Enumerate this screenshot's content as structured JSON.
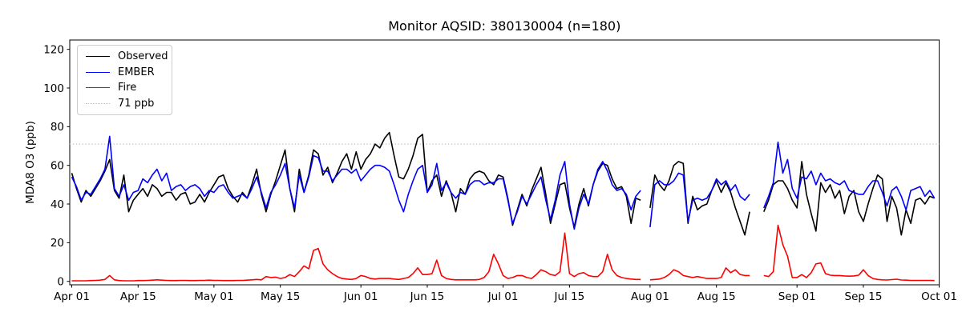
{
  "figure": {
    "title": "Monitor AQSID: 380130004 (n=180)",
    "background_color": "#ffffff"
  },
  "chart_data": {
    "type": "line",
    "title": "Monitor AQSID: 380130004 (n=180)",
    "xlabel": "",
    "ylabel": "MDA8 O3 (ppb)",
    "grid": false,
    "legend_position": "upper left",
    "ylim": [
      -2,
      125
    ],
    "yticks": [
      0,
      20,
      40,
      60,
      80,
      100,
      120
    ],
    "x_unit": "days since Apr 01",
    "x_range_days": [
      0,
      183
    ],
    "n_points": 183,
    "n_valid_points": 180,
    "xticks": [
      {
        "day": 0,
        "label": "Apr 01"
      },
      {
        "day": 14,
        "label": "Apr 15"
      },
      {
        "day": 30,
        "label": "May 01"
      },
      {
        "day": 44,
        "label": "May 15"
      },
      {
        "day": 61,
        "label": "Jun 01"
      },
      {
        "day": 75,
        "label": "Jun 15"
      },
      {
        "day": 91,
        "label": "Jul 01"
      },
      {
        "day": 105,
        "label": "Jul 15"
      },
      {
        "day": 122,
        "label": "Aug 01"
      },
      {
        "day": 136,
        "label": "Aug 15"
      },
      {
        "day": 153,
        "label": "Sep 01"
      },
      {
        "day": 167,
        "label": "Sep 15"
      },
      {
        "day": 183,
        "label": "Oct 01"
      }
    ],
    "reference_line": {
      "value": 71,
      "label": "71 ppb",
      "style": "dotted",
      "color": "#c0c0c0"
    },
    "series": [
      {
        "name": "Observed",
        "color": "#000000",
        "values": [
          56,
          48,
          41,
          47,
          44,
          48,
          52,
          57,
          63,
          47,
          43,
          55,
          36,
          42,
          45,
          48,
          44,
          50,
          48,
          44,
          46,
          46,
          42,
          45,
          46,
          40,
          41,
          45,
          41,
          46,
          50,
          54,
          55,
          48,
          44,
          41,
          46,
          43,
          50,
          58,
          45,
          36,
          45,
          52,
          60,
          68,
          48,
          36,
          58,
          46,
          55,
          68,
          66,
          55,
          59,
          51,
          56,
          62,
          66,
          58,
          67,
          58,
          63,
          66,
          71,
          69,
          74,
          77,
          65,
          54,
          53,
          58,
          65,
          74,
          76,
          46,
          52,
          55,
          44,
          52,
          46,
          36,
          48,
          45,
          53,
          56,
          57,
          56,
          52,
          50,
          55,
          54,
          43,
          29,
          37,
          45,
          39,
          47,
          53,
          59,
          45,
          30,
          40,
          50,
          51,
          38,
          28,
          40,
          48,
          39,
          50,
          57,
          61,
          60,
          53,
          48,
          49,
          44,
          30,
          43,
          42,
          null,
          38,
          55,
          50,
          47,
          52,
          60,
          62,
          61,
          30,
          44,
          37,
          39,
          40,
          47,
          52,
          46,
          51,
          46,
          38,
          31,
          24,
          36,
          null,
          null,
          36,
          42,
          50,
          52,
          52,
          48,
          42,
          38,
          62,
          45,
          35,
          26,
          51,
          46,
          50,
          43,
          47,
          35,
          44,
          47,
          36,
          31,
          40,
          48,
          55,
          53,
          31,
          44,
          38,
          24,
          37,
          30,
          42,
          43,
          40,
          44,
          43
        ]
      },
      {
        "name": "EMBER",
        "color": "#0000ff",
        "values": [
          54,
          49,
          42,
          46,
          45,
          49,
          53,
          58,
          75,
          48,
          44,
          50,
          42,
          46,
          47,
          53,
          51,
          55,
          58,
          52,
          56,
          47,
          49,
          50,
          47,
          49,
          50,
          48,
          44,
          47,
          46,
          49,
          50,
          46,
          43,
          44,
          45,
          43,
          48,
          54,
          46,
          38,
          46,
          50,
          55,
          61,
          48,
          38,
          55,
          46,
          54,
          65,
          64,
          57,
          57,
          52,
          55,
          58,
          58,
          56,
          58,
          52,
          55,
          58,
          60,
          60,
          59,
          57,
          50,
          42,
          36,
          45,
          52,
          58,
          60,
          46,
          50,
          61,
          47,
          51,
          46,
          43,
          46,
          45,
          50,
          52,
          52,
          50,
          51,
          51,
          53,
          53,
          42,
          30,
          36,
          44,
          40,
          45,
          50,
          54,
          42,
          32,
          42,
          55,
          62,
          40,
          27,
          38,
          45,
          40,
          50,
          58,
          62,
          57,
          50,
          47,
          48,
          45,
          37,
          44,
          47,
          null,
          28,
          50,
          52,
          50,
          50,
          52,
          56,
          55,
          31,
          42,
          43,
          42,
          43,
          47,
          53,
          50,
          52,
          47,
          50,
          44,
          42,
          45,
          null,
          null,
          38,
          44,
          51,
          72,
          56,
          63,
          48,
          43,
          54,
          53,
          57,
          50,
          56,
          52,
          53,
          51,
          50,
          52,
          47,
          46,
          45,
          45,
          49,
          52,
          52,
          46,
          39,
          47,
          49,
          44,
          37,
          47,
          48,
          49,
          44,
          47,
          43
        ]
      },
      {
        "name": "Fire",
        "color": "#ff0000",
        "values": [
          0.3,
          0.3,
          0.3,
          0.3,
          0.4,
          0.5,
          0.6,
          1,
          3,
          0.8,
          0.4,
          0.3,
          0.3,
          0.3,
          0.4,
          0.4,
          0.5,
          0.6,
          0.8,
          0.6,
          0.5,
          0.4,
          0.4,
          0.5,
          0.5,
          0.4,
          0.4,
          0.5,
          0.5,
          0.6,
          0.5,
          0.5,
          0.4,
          0.4,
          0.4,
          0.5,
          0.5,
          0.6,
          0.8,
          1,
          0.8,
          2.5,
          2,
          2.2,
          1.5,
          2,
          3.5,
          2.5,
          5,
          8,
          6.5,
          16,
          17,
          9,
          6,
          4,
          2.5,
          1.5,
          1.2,
          1,
          1.5,
          3,
          2.5,
          1.5,
          1.2,
          1.5,
          1.5,
          1.5,
          1.2,
          1,
          1.5,
          2,
          4,
          7,
          3.5,
          3.5,
          4,
          11,
          3,
          1.5,
          1,
          0.8,
          0.8,
          0.8,
          0.8,
          0.8,
          1,
          2,
          5,
          14,
          9,
          3,
          1.5,
          2,
          3,
          3,
          2,
          1.5,
          3.5,
          6,
          5,
          3.5,
          3,
          5,
          25,
          4,
          2.5,
          4,
          4.5,
          3,
          2.5,
          2.5,
          5,
          14,
          6,
          3,
          2,
          1.5,
          1.2,
          1,
          1,
          null,
          0.8,
          1,
          1.2,
          2,
          3.5,
          6,
          5,
          3,
          2.5,
          2,
          2.5,
          2,
          1.5,
          1.5,
          1.5,
          2,
          7,
          4.5,
          6,
          3.5,
          3,
          3,
          null,
          null,
          3,
          2.5,
          5,
          29,
          19,
          13,
          2,
          2,
          3.5,
          2,
          4.5,
          9,
          9.5,
          4,
          3.2,
          3,
          3,
          2.8,
          2.7,
          2.8,
          3.2,
          6,
          3,
          1.5,
          1,
          0.8,
          0.7,
          0.9,
          1.1,
          0.7,
          0.6,
          0.5,
          0.5,
          0.5,
          0.5,
          0.5,
          0.4
        ]
      }
    ]
  }
}
